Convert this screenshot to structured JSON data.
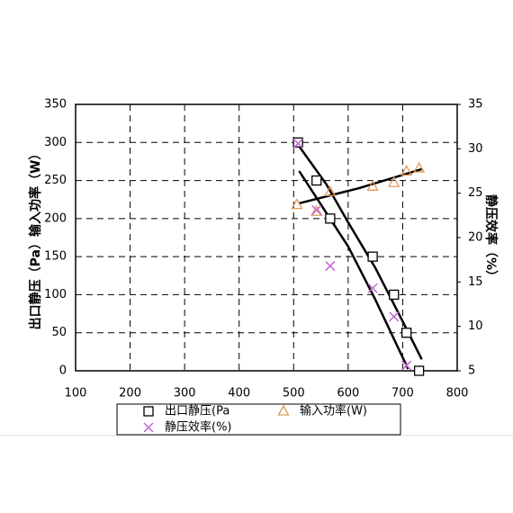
{
  "chart_data": {
    "type": "scatter",
    "y_label": "出口静压（Pa）输入功率（W）",
    "y2_label": "静压效率（%）",
    "xlim": [
      100,
      800
    ],
    "xticks": [
      100,
      200,
      300,
      400,
      500,
      600,
      700,
      800
    ],
    "ylim": [
      0,
      350
    ],
    "yticks": [
      0,
      50,
      100,
      150,
      200,
      250,
      300,
      350
    ],
    "y2lim": [
      5,
      35
    ],
    "y2ticks": [
      5,
      10,
      15,
      20,
      25,
      30,
      35
    ],
    "grid": true,
    "series": [
      {
        "name": "出口静压(Pa",
        "marker": "square",
        "color": "#000000",
        "x": [
          508,
          542,
          567,
          645,
          684,
          707,
          730
        ],
        "values": [
          300,
          250,
          200,
          150,
          100,
          50,
          0
        ]
      },
      {
        "name": "输入功率(W)",
        "marker": "triangle",
        "color": "#e09a5a",
        "x": [
          506,
          542,
          567,
          645,
          684,
          707,
          730
        ],
        "values": [
          218,
          209,
          235,
          242,
          247,
          262,
          266
        ]
      },
      {
        "name": "静压效率(%)",
        "marker": "cross",
        "color": "#c266d6",
        "axis": "y2",
        "x": [
          508,
          542,
          567,
          645,
          684,
          707
        ],
        "values": [
          30.6,
          23.1,
          16.8,
          14.3,
          11.1,
          5.6
        ]
      }
    ],
    "trend_lines": [
      {
        "color": "#000000",
        "x": [
          510,
          560,
          600,
          650,
          700,
          735
        ],
        "values": [
          295,
          245,
          195,
          135,
          65,
          15
        ]
      },
      {
        "color": "#000000",
        "x": [
          510,
          620,
          735
        ],
        "values": [
          220,
          240,
          265
        ]
      },
      {
        "color": "#000000",
        "axis": "y2",
        "x": [
          510,
          600,
          650,
          710
        ],
        "values": [
          27.5,
          19,
          13,
          5.2
        ]
      }
    ]
  }
}
